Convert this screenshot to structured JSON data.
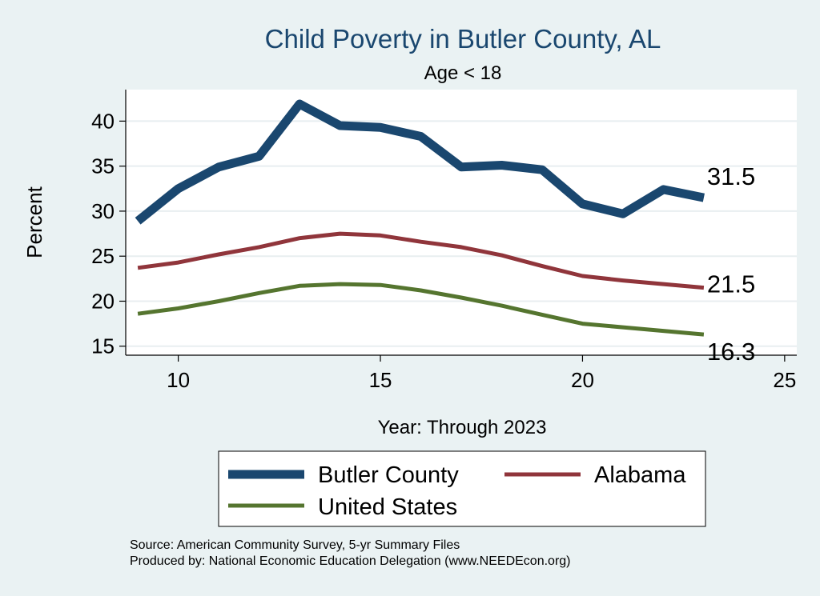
{
  "chart_data": {
    "type": "line",
    "title": "Child Poverty in Butler County, AL",
    "subtitle": "Age < 18",
    "xlabel": "Year: Through 2023",
    "ylabel": "Percent",
    "xlim": [
      8.7,
      25.3
    ],
    "ylim": [
      14,
      43.5
    ],
    "x_ticks": [
      10,
      15,
      20,
      25
    ],
    "y_ticks": [
      15,
      20,
      25,
      30,
      35,
      40
    ],
    "grid": true,
    "x": [
      9,
      10,
      11,
      12,
      13,
      14,
      15,
      16,
      17,
      18,
      19,
      20,
      21,
      22,
      23
    ],
    "series": [
      {
        "name": "Butler County",
        "color": "#1a476f",
        "values": [
          28.9,
          32.5,
          34.9,
          36.1,
          41.9,
          39.5,
          39.3,
          38.3,
          34.9,
          35.1,
          34.6,
          30.8,
          29.7,
          32.4,
          31.5
        ],
        "end_label": "31.5"
      },
      {
        "name": "Alabama",
        "color": "#90353b",
        "values": [
          23.7,
          24.3,
          25.2,
          26.0,
          27.0,
          27.5,
          27.3,
          26.6,
          26.0,
          25.1,
          23.9,
          22.8,
          22.3,
          21.9,
          21.5
        ],
        "end_label": "21.5"
      },
      {
        "name": "United States",
        "color": "#55752f",
        "values": [
          18.6,
          19.2,
          20.0,
          20.9,
          21.7,
          21.9,
          21.8,
          21.2,
          20.4,
          19.5,
          18.5,
          17.5,
          17.1,
          16.7,
          16.3
        ],
        "end_label": "16.3"
      }
    ],
    "legend": {
      "placement": "bottom",
      "items": [
        "Butler County",
        "Alabama",
        "United States"
      ]
    },
    "notes": [
      "Source: American Community Survey, 5-yr Summary Files",
      "Produced by: National Economic Education Delegation (www.NEEDEcon.org)"
    ]
  }
}
